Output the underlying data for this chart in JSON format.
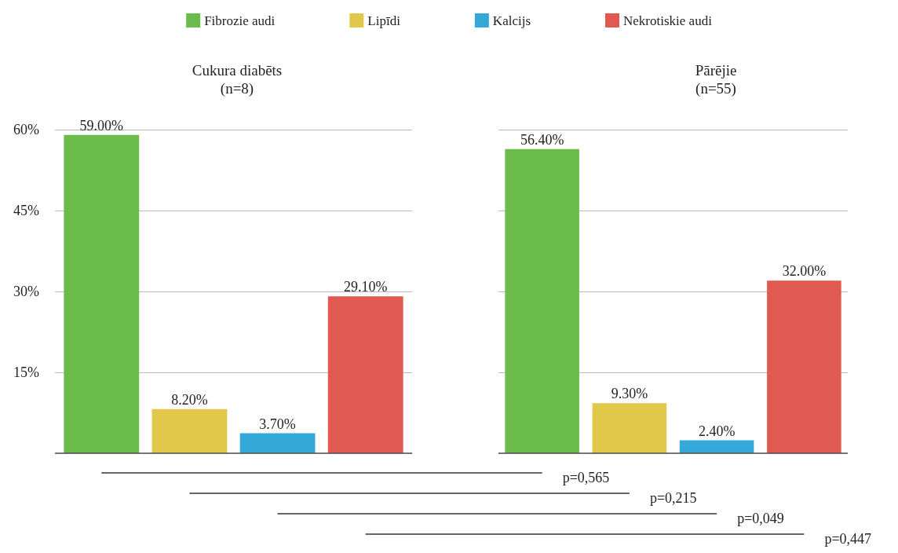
{
  "chart_data": [
    {
      "type": "bar",
      "title": "Cukura diabēts",
      "subtitle": "(n=8)",
      "categories": [
        null
      ],
      "ylim": [
        0,
        60
      ],
      "yticks": [
        {
          "value": 0,
          "label": null
        },
        {
          "value": 15,
          "label": "15%"
        },
        {
          "value": 30,
          "label": "30%"
        },
        {
          "value": 45,
          "label": "45%"
        },
        {
          "value": 60,
          "label": "60%"
        }
      ],
      "grid": "y",
      "legend": "top",
      "series": [
        {
          "name": "Fibrozie audi",
          "color": "#6abd4b",
          "values": [
            59.0
          ],
          "value_labels": [
            "59.00%"
          ]
        },
        {
          "name": "Lipīdi",
          "color": "#e2c84a",
          "values": [
            8.2
          ],
          "value_labels": [
            "8.20%"
          ]
        },
        {
          "name": "Kalcijs",
          "color": "#34a9d9",
          "values": [
            3.7
          ],
          "value_labels": [
            "3.70%"
          ]
        },
        {
          "name": "Nekrotiskie audi",
          "color": "#e05a52",
          "values": [
            29.1
          ],
          "value_labels": [
            "29.10%"
          ]
        }
      ],
      "annotations": [
        "p=0,565",
        "p=0,215",
        "p=0,049",
        "p=0,447"
      ]
    },
    {
      "type": "bar",
      "title": "Pārējie",
      "subtitle": "(n=55)",
      "categories": [
        null,
        null,
        null,
        null
      ],
      "ylim": [
        0,
        60
      ],
      "yticks": [
        0,
        15,
        30,
        45,
        60
      ],
      "grid": "y",
      "tick_labels": false,
      "values": [
        56.4,
        9.3,
        2.4,
        32.0
      ],
      "colors": [
        "#6abd4b",
        "#e2c84a",
        "#34a9d9",
        "#e05a52"
      ],
      "value_labels": [
        "56.40%",
        "9.30%",
        "2.40%",
        "32.00%"
      ]
    }
  ]
}
